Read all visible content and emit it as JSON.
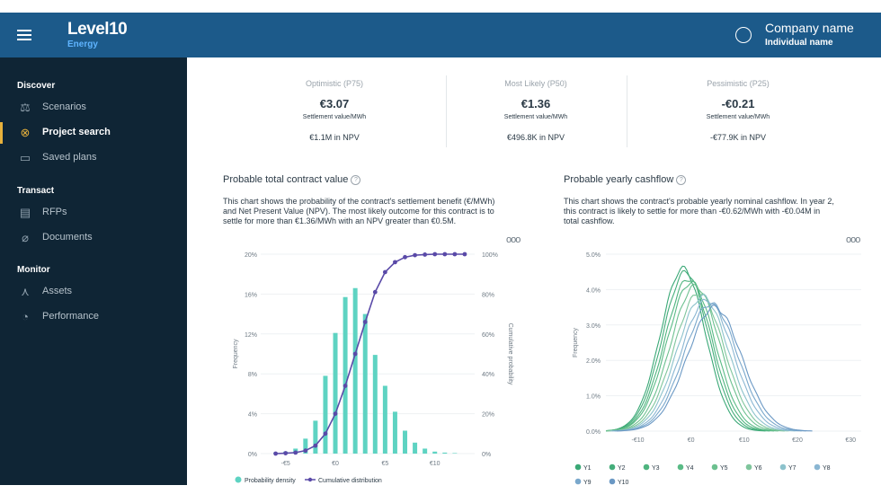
{
  "header": {
    "logo_main": "Level10",
    "logo_sub": "Energy",
    "company": "Company name",
    "individual": "Individual name"
  },
  "sidebar": {
    "sections": [
      {
        "title": "Discover",
        "items": [
          {
            "label": "Scenarios",
            "icon": "scale-icon"
          },
          {
            "label": "Project search",
            "icon": "binoculars-icon",
            "active": true
          },
          {
            "label": "Saved plans",
            "icon": "map-icon"
          }
        ]
      },
      {
        "title": "Transact",
        "items": [
          {
            "label": "RFPs",
            "icon": "document-search-icon"
          },
          {
            "label": "Documents",
            "icon": "paperclip-icon"
          }
        ]
      },
      {
        "title": "Monitor",
        "items": [
          {
            "label": "Assets",
            "icon": "wind-turbine-icon"
          },
          {
            "label": "Performance",
            "icon": "gauge-icon"
          }
        ]
      }
    ]
  },
  "scenarios": [
    {
      "title": "Optimistic (P75)",
      "value": "€3.07",
      "sub": "Settlement value/MWh",
      "npv": "€1.1M in NPV"
    },
    {
      "title": "Most Likely (P50)",
      "value": "€1.36",
      "sub": "Settlement value/MWh",
      "npv": "€496.8K in NPV"
    },
    {
      "title": "Pessimistic (P25)",
      "value": "-€0.21",
      "sub": "Settlement value/MWh",
      "npv": "-€77.9K in NPV"
    }
  ],
  "left_chart": {
    "title": "Probable total contract value",
    "desc_lines": [
      "This chart shows the probability of the contract's settlement benefit (€/MWh)",
      "and Net Present Value (NPV). The most likely outcome for this contract is to",
      "settle for more than €1.36/MWh with an NPV greater than €0.5M."
    ],
    "ylabel": "Frequency",
    "y2label": "Cumulative probability",
    "legend": [
      "Probability density",
      "Cumulative distribution"
    ]
  },
  "right_chart": {
    "title": "Probable yearly cashflow",
    "desc_lines": [
      "This chart shows the contract's probable yearly nominal cashflow. In year 2,",
      "this contract is likely to settle for more than -€0.62/MWh with -€0.04M in",
      "total cashflow."
    ],
    "ylabel": "Frequency"
  },
  "colors": {
    "bar": "#5ed3c2",
    "cdf": "#5a4aa8",
    "nav": "#1c5a8a",
    "sidebar": "#0f2535",
    "accent": "#e7b13c"
  },
  "chart_data": [
    {
      "type": "bar",
      "title": "Probable total contract value",
      "x_ticks": [
        "-€5",
        "€0",
        "€5",
        "€10"
      ],
      "y_ticks": [
        "0%",
        "4%",
        "8%",
        "12%",
        "16%",
        "20%"
      ],
      "y2_ticks": [
        "0%",
        "20%",
        "40%",
        "60%",
        "80%",
        "100%"
      ],
      "ylim": [
        0,
        20
      ],
      "y2lim": [
        0,
        100
      ],
      "xlim": [
        -7.5,
        14
      ],
      "bar_width": 0.45,
      "series": [
        {
          "name": "Probability density",
          "x": [
            -6,
            -5,
            -4,
            -3,
            -2,
            -1,
            0,
            1,
            2,
            3,
            4,
            5,
            6,
            7,
            8,
            9,
            10,
            11,
            12
          ],
          "values": [
            0.1,
            0.2,
            0.5,
            1.5,
            3.3,
            7.8,
            12.1,
            15.7,
            16.6,
            14.0,
            9.9,
            6.8,
            4.2,
            2.3,
            1.1,
            0.5,
            0.2,
            0.1,
            0.05
          ]
        },
        {
          "name": "Cumulative distribution",
          "x": [
            -6,
            -5,
            -4,
            -3,
            -2,
            -1,
            0,
            1,
            2,
            3,
            4,
            5,
            6,
            7,
            8,
            9,
            10,
            11,
            12,
            13
          ],
          "values": [
            0,
            0.2,
            0.5,
            1.5,
            4,
            10,
            20,
            34,
            50,
            66,
            81,
            91,
            96,
            98.5,
            99.5,
            99.8,
            100,
            100,
            100,
            100
          ]
        }
      ]
    },
    {
      "type": "line",
      "title": "Probable yearly cashflow",
      "x_ticks": [
        "-€10",
        "€0",
        "€10",
        "€20",
        "€30"
      ],
      "y_ticks": [
        "0.0%",
        "1.0%",
        "2.0%",
        "3.0%",
        "4.0%",
        "5.0%"
      ],
      "xlim": [
        -16,
        32
      ],
      "ylim": [
        0,
        5
      ],
      "series": [
        {
          "name": "Y1",
          "color": "#3aa876",
          "mean": -1.5,
          "sd": 4.2,
          "peak": 4.6
        },
        {
          "name": "Y2",
          "color": "#44ad7a",
          "mean": -1.0,
          "sd": 4.3,
          "peak": 4.5
        },
        {
          "name": "Y3",
          "color": "#4fb47f",
          "mean": -0.5,
          "sd": 4.4,
          "peak": 4.3
        },
        {
          "name": "Y4",
          "color": "#5abb86",
          "mean": 0.0,
          "sd": 4.5,
          "peak": 4.2
        },
        {
          "name": "Y5",
          "color": "#6cc08f",
          "mean": 0.8,
          "sd": 4.6,
          "peak": 4.1
        },
        {
          "name": "Y6",
          "color": "#7fc59c",
          "mean": 1.5,
          "sd": 4.7,
          "peak": 3.9
        },
        {
          "name": "Y7",
          "color": "#8cc2cc",
          "mean": 2.2,
          "sd": 4.8,
          "peak": 3.8
        },
        {
          "name": "Y8",
          "color": "#8ab6d2",
          "mean": 3.0,
          "sd": 4.9,
          "peak": 3.7
        },
        {
          "name": "Y9",
          "color": "#7aa8cc",
          "mean": 3.7,
          "sd": 5.0,
          "peak": 3.6
        },
        {
          "name": "Y10",
          "color": "#6a98c4",
          "mean": 4.4,
          "sd": 5.1,
          "peak": 3.5
        }
      ]
    }
  ]
}
